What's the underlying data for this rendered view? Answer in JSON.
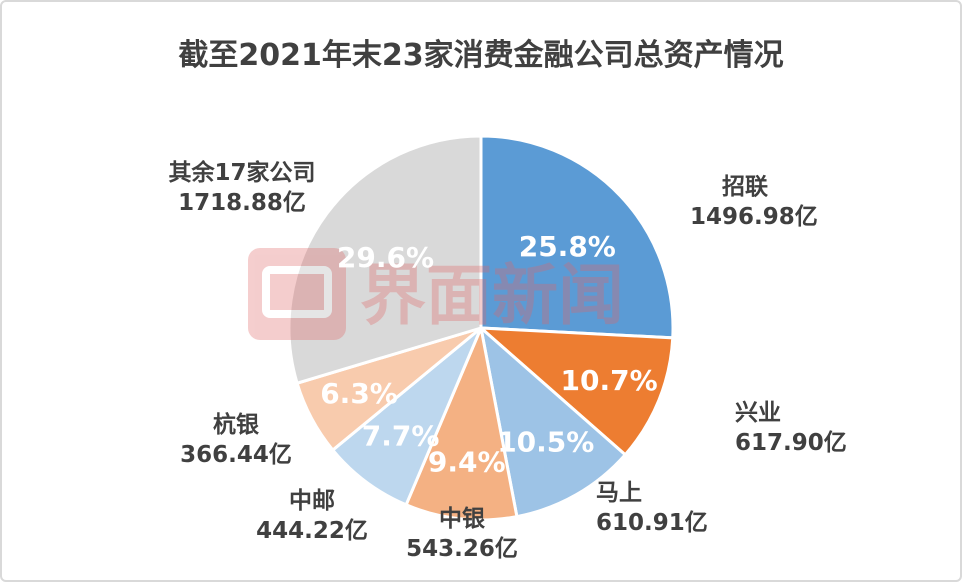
{
  "chart_data": {
    "type": "pie",
    "title": "截至2021年末23家消费金融公司总资产情况",
    "unit": "亿",
    "slices": [
      {
        "name": "招联",
        "value": 1496.98,
        "percent_label": "25.8%",
        "value_label": "1496.98亿",
        "color": "#5b9bd5"
      },
      {
        "name": "兴业",
        "value": 617.9,
        "percent_label": "10.7%",
        "value_label": "617.90亿",
        "color": "#ed7d31"
      },
      {
        "name": "马上",
        "value": 610.91,
        "percent_label": "10.5%",
        "value_label": "610.91亿",
        "color": "#9dc3e6"
      },
      {
        "name": "中银",
        "value": 543.26,
        "percent_label": "9.4%",
        "value_label": "543.26亿",
        "color": "#f4b183"
      },
      {
        "name": "中邮",
        "value": 444.22,
        "percent_label": "7.7%",
        "value_label": "444.22亿",
        "color": "#bdd7ee"
      },
      {
        "name": "杭银",
        "value": 366.44,
        "percent_label": "6.3%",
        "value_label": "366.44亿",
        "color": "#f8cbad"
      },
      {
        "name": "其余17家公司",
        "value": 1718.88,
        "percent_label": "29.6%",
        "value_label": "1718.88亿",
        "color": "#d9d9d9"
      }
    ],
    "legend": "none"
  },
  "watermark": {
    "text": "界面新闻",
    "color": "#e8a0a0"
  }
}
